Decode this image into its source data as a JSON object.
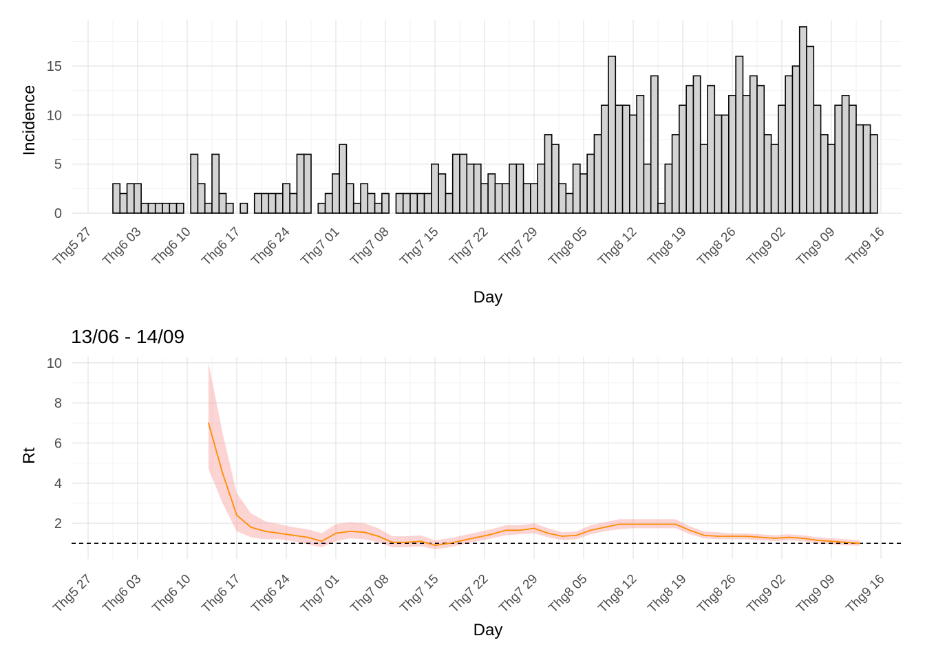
{
  "chart_data": [
    {
      "type": "bar",
      "title": "",
      "xlabel": "Day",
      "ylabel": "Incidence",
      "x_ticks": [
        "Thg5 27",
        "Thg6 03",
        "Thg6 10",
        "Thg6 17",
        "Thg6 24",
        "Thg7 01",
        "Thg7 08",
        "Thg7 15",
        "Thg7 22",
        "Thg7 29",
        "Thg8 05",
        "Thg8 12",
        "Thg8 19",
        "Thg8 26",
        "Thg9 02",
        "Thg9 09",
        "Thg9 16"
      ],
      "y_ticks": [
        "0",
        "5",
        "10",
        "15"
      ],
      "ylim": [
        0,
        19
      ],
      "first_day": "Thg5 31",
      "values": [
        3,
        2,
        3,
        3,
        1,
        1,
        1,
        1,
        1,
        1,
        0,
        6,
        3,
        1,
        6,
        2,
        1,
        0,
        1,
        0,
        2,
        2,
        2,
        2,
        3,
        2,
        6,
        6,
        0,
        1,
        2,
        4,
        7,
        3,
        1,
        3,
        2,
        1,
        2,
        0,
        2,
        2,
        2,
        2,
        2,
        5,
        4,
        2,
        6,
        6,
        5,
        5,
        3,
        4,
        3,
        3,
        5,
        5,
        3,
        3,
        5,
        8,
        7,
        3,
        2,
        5,
        4,
        6,
        8,
        11,
        16,
        11,
        11,
        10,
        12,
        5,
        14,
        1,
        5,
        8,
        11,
        13,
        14,
        7,
        13,
        10,
        10,
        12,
        16,
        12,
        14,
        13,
        8,
        7,
        11,
        14,
        15,
        19,
        17,
        11,
        8,
        7,
        11,
        12,
        11,
        9,
        9,
        8
      ],
      "bar_fill": "#d3d3d3",
      "bar_stroke": "#000000",
      "grid": true
    },
    {
      "type": "line",
      "title": "13/06 - 14/09",
      "xlabel": "Day",
      "ylabel": "Rt",
      "x_ticks": [
        "Thg5 27",
        "Thg6 03",
        "Thg6 10",
        "Thg6 17",
        "Thg6 24",
        "Thg7 01",
        "Thg7 08",
        "Thg7 15",
        "Thg7 22",
        "Thg7 29",
        "Thg8 05",
        "Thg8 12",
        "Thg8 19",
        "Thg8 26",
        "Thg9 02",
        "Thg9 09",
        "Thg9 16"
      ],
      "y_ticks": [
        "2",
        "4",
        "6",
        "8",
        "10"
      ],
      "ylim": [
        0,
        10
      ],
      "reference_line": 1,
      "series": [
        {
          "x": [
            "Thg6 13",
            "Thg6 15",
            "Thg6 17",
            "Thg6 19",
            "Thg6 21",
            "Thg6 23",
            "Thg6 25",
            "Thg6 27",
            "Thg6 29",
            "Thg7 01",
            "Thg7 03",
            "Thg7 05",
            "Thg7 07",
            "Thg7 09",
            "Thg7 11",
            "Thg7 13",
            "Thg7 15",
            "Thg7 17",
            "Thg7 19",
            "Thg7 21",
            "Thg7 23",
            "Thg7 25",
            "Thg7 27",
            "Thg7 29",
            "Thg7 31",
            "Thg8 02",
            "Thg8 04",
            "Thg8 06",
            "Thg8 08",
            "Thg8 10",
            "Thg8 12",
            "Thg8 14",
            "Thg8 16",
            "Thg8 18",
            "Thg8 20",
            "Thg8 22",
            "Thg8 24",
            "Thg8 26",
            "Thg8 28",
            "Thg8 30",
            "Thg9 01",
            "Thg9 03",
            "Thg9 05",
            "Thg9 07",
            "Thg9 09",
            "Thg9 11",
            "Thg9 13"
          ],
          "y": [
            7.0,
            4.5,
            2.4,
            1.8,
            1.6,
            1.5,
            1.4,
            1.3,
            1.1,
            1.5,
            1.6,
            1.55,
            1.35,
            1.05,
            1.05,
            1.1,
            0.9,
            1.0,
            1.15,
            1.3,
            1.45,
            1.65,
            1.65,
            1.75,
            1.5,
            1.35,
            1.4,
            1.65,
            1.8,
            1.95,
            1.95,
            1.95,
            1.95,
            1.95,
            1.65,
            1.4,
            1.35,
            1.35,
            1.35,
            1.3,
            1.25,
            1.3,
            1.25,
            1.15,
            1.1,
            1.05,
            1.0
          ],
          "lower": [
            4.7,
            3.0,
            1.6,
            1.3,
            1.2,
            1.2,
            1.1,
            0.95,
            0.8,
            1.1,
            1.25,
            1.2,
            1.05,
            0.8,
            0.8,
            0.85,
            0.7,
            0.8,
            0.95,
            1.1,
            1.25,
            1.4,
            1.45,
            1.5,
            1.3,
            1.15,
            1.2,
            1.45,
            1.6,
            1.7,
            1.75,
            1.75,
            1.75,
            1.75,
            1.45,
            1.25,
            1.2,
            1.2,
            1.2,
            1.15,
            1.1,
            1.15,
            1.1,
            1.0,
            0.95,
            0.9,
            0.88
          ],
          "upper": [
            10.0,
            6.5,
            3.5,
            2.5,
            2.1,
            1.95,
            1.8,
            1.7,
            1.5,
            1.95,
            2.05,
            2.0,
            1.75,
            1.35,
            1.35,
            1.4,
            1.15,
            1.25,
            1.4,
            1.55,
            1.7,
            1.9,
            1.9,
            2.0,
            1.75,
            1.55,
            1.6,
            1.9,
            2.05,
            2.2,
            2.2,
            2.2,
            2.2,
            2.2,
            1.85,
            1.6,
            1.55,
            1.5,
            1.5,
            1.45,
            1.4,
            1.45,
            1.4,
            1.3,
            1.25,
            1.2,
            1.15
          ],
          "line_color": "#ff8c00",
          "band_color": "#f8a0a0"
        }
      ],
      "grid": true
    }
  ]
}
